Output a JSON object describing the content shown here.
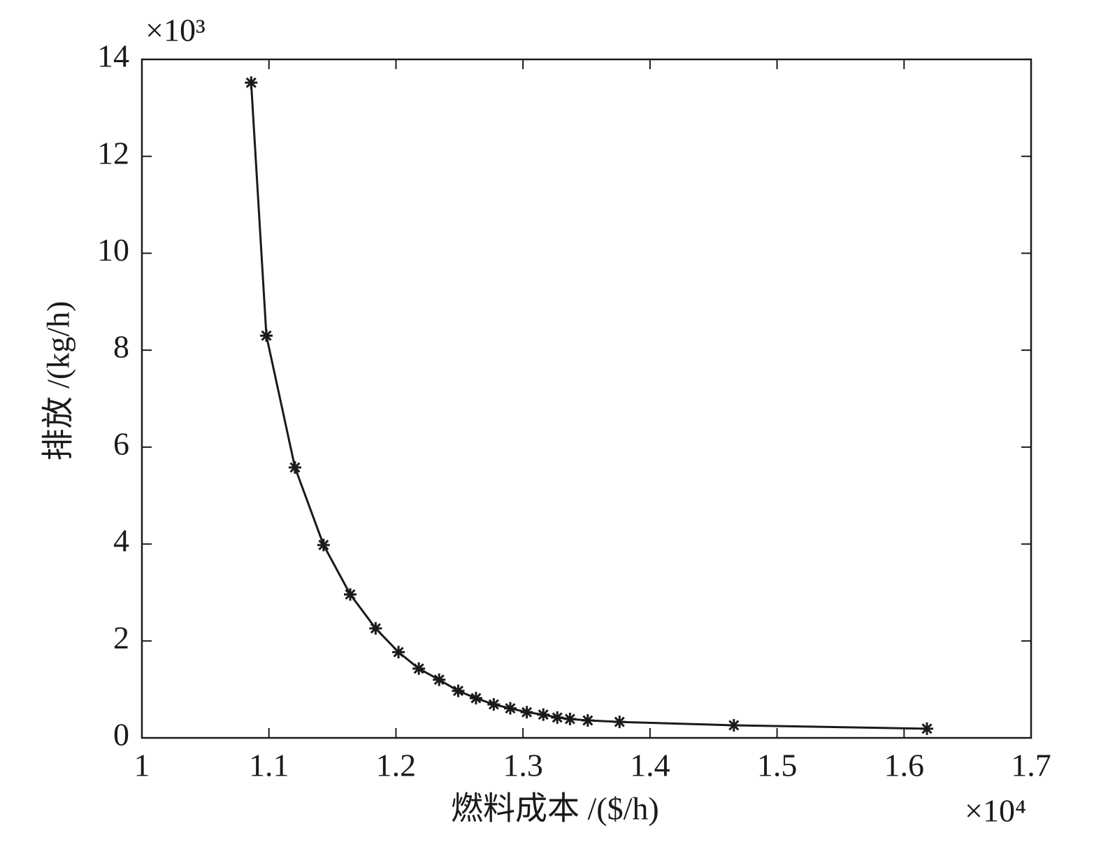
{
  "chart_data": {
    "type": "line",
    "x_label": "燃料成本 /($/h)",
    "y_label": "排放 /(kg/h)",
    "x_multiplier": "×10⁴",
    "y_multiplier": "×10³",
    "xlim": [
      1,
      1.7
    ],
    "xticks": [
      1,
      1.1,
      1.2,
      1.3,
      1.4,
      1.5,
      1.6,
      1.7
    ],
    "ylim": [
      0,
      14
    ],
    "yticks": [
      0,
      2,
      4,
      6,
      8,
      10,
      12,
      14
    ],
    "grid": false,
    "marker": "asterisk",
    "series": [
      {
        "color": "#1a1a1a",
        "x": [
          1.086,
          1.098,
          1.1205,
          1.143,
          1.164,
          1.184,
          1.202,
          1.218,
          1.234,
          1.249,
          1.263,
          1.277,
          1.29,
          1.303,
          1.316,
          1.327,
          1.337,
          1.351,
          1.376,
          1.466,
          1.618
        ],
        "values": [
          13.52,
          8.3,
          5.58,
          3.98,
          2.96,
          2.26,
          1.77,
          1.43,
          1.2,
          0.97,
          0.82,
          0.69,
          0.61,
          0.53,
          0.48,
          0.42,
          0.39,
          0.36,
          0.33,
          0.26,
          0.19
        ]
      }
    ]
  }
}
